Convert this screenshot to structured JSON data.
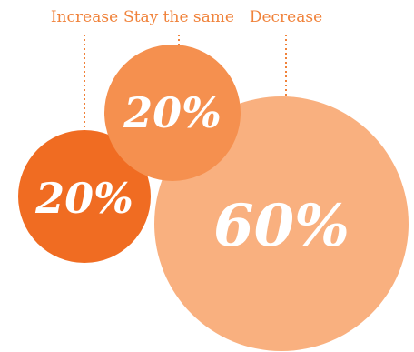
{
  "chart_data": {
    "type": "bubble",
    "categories": [
      "Increase",
      "Stay the same",
      "Decrease"
    ],
    "values": [
      20,
      20,
      60
    ],
    "unit": "%",
    "colors": [
      "#f06c22",
      "#f5904f",
      "#f9b07f"
    ],
    "label_color": "#f0823a",
    "value_labels": [
      "20%",
      "20%",
      "60%"
    ]
  }
}
